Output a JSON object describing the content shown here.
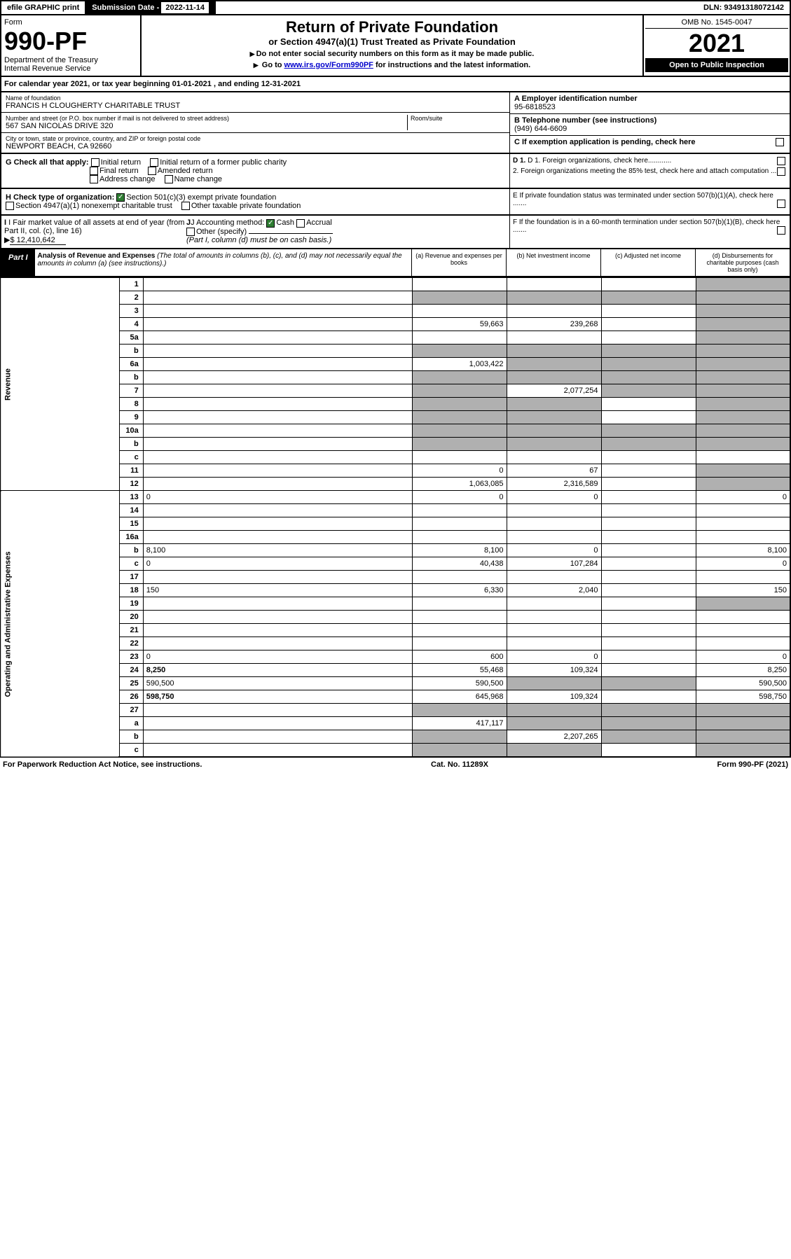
{
  "topbar": {
    "efile": "efile GRAPHIC print",
    "sub_label": "Submission Date - ",
    "sub_date": "2022-11-14",
    "dln_label": "DLN: ",
    "dln": "93491318072142"
  },
  "header": {
    "form_label": "Form",
    "form_no": "990-PF",
    "dept": "Department of the Treasury",
    "irs": "Internal Revenue Service",
    "title": "Return of Private Foundation",
    "subtitle": "or Section 4947(a)(1) Trust Treated as Private Foundation",
    "note1": "Do not enter social security numbers on this form as it may be made public.",
    "note2_pre": "Go to ",
    "note2_link": "www.irs.gov/Form990PF",
    "note2_post": " for instructions and the latest information.",
    "omb": "OMB No. 1545-0047",
    "year": "2021",
    "open": "Open to Public Inspection"
  },
  "calyear": "For calendar year 2021, or tax year beginning 01-01-2021                        , and ending 12-31-2021",
  "info": {
    "name_lbl": "Name of foundation",
    "name": "FRANCIS H CLOUGHERTY CHARITABLE TRUST",
    "addr_lbl": "Number and street (or P.O. box number if mail is not delivered to street address)",
    "addr": "567 SAN NICOLAS DRIVE 320",
    "room_lbl": "Room/suite",
    "city_lbl": "City or town, state or province, country, and ZIP or foreign postal code",
    "city": "NEWPORT BEACH, CA  92660",
    "ein_lbl": "A Employer identification number",
    "ein": "95-6818523",
    "tel_lbl": "B Telephone number (see instructions)",
    "tel": "(949) 644-6609",
    "c_lbl": "C If exemption application is pending, check here"
  },
  "checks": {
    "g_lbl": "G Check all that apply:",
    "initial": "Initial return",
    "initial_former": "Initial return of a former public charity",
    "final": "Final return",
    "amended": "Amended return",
    "addr_change": "Address change",
    "name_change": "Name change",
    "d1": "D 1. Foreign organizations, check here............",
    "d2": "2. Foreign organizations meeting the 85% test, check here and attach computation ...",
    "e": "E  If private foundation status was terminated under section 507(b)(1)(A), check here .......",
    "h_lbl": "H Check type of organization:",
    "h1": "Section 501(c)(3) exempt private foundation",
    "h2": "Section 4947(a)(1) nonexempt charitable trust",
    "h3": "Other taxable private foundation",
    "i_lbl": "I Fair market value of all assets at end of year (from Part II, col. (c), line 16)",
    "i_val": "$  12,410,642",
    "j_lbl": "J Accounting method:",
    "j_cash": "Cash",
    "j_accrual": "Accrual",
    "j_other": "Other (specify)",
    "j_note": "(Part I, column (d) must be on cash basis.)",
    "f": "F  If the foundation is in a 60-month termination under section 507(b)(1)(B), check here ......."
  },
  "part1": {
    "label": "Part I",
    "title": "Analysis of Revenue and Expenses",
    "desc": "(The total of amounts in columns (b), (c), and (d) may not necessarily equal the amounts in column (a) (see instructions).)",
    "col_a": "(a)   Revenue and expenses per books",
    "col_b": "(b)   Net investment income",
    "col_c": "(c)   Adjusted net income",
    "col_d": "(d)   Disbursements for charitable purposes (cash basis only)"
  },
  "side_rev": "Revenue",
  "side_exp": "Operating and Administrative Expenses",
  "rows": [
    {
      "n": "1",
      "d": "",
      "a": "",
      "b": "",
      "c": "",
      "shade_d": true
    },
    {
      "n": "2",
      "d": "",
      "a": "",
      "b": "",
      "c": "",
      "shade": true
    },
    {
      "n": "3",
      "d": "",
      "a": "",
      "b": "",
      "c": "",
      "shade_d": true
    },
    {
      "n": "4",
      "d": "",
      "a": "59,663",
      "b": "239,268",
      "c": "",
      "shade_d": true
    },
    {
      "n": "5a",
      "d": "",
      "a": "",
      "b": "",
      "c": "",
      "shade_d": true
    },
    {
      "n": "b",
      "d": "",
      "a": "",
      "b": "",
      "c": "",
      "shade": true
    },
    {
      "n": "6a",
      "d": "",
      "a": "1,003,422",
      "b": "",
      "c": "",
      "shade_bcd": true
    },
    {
      "n": "b",
      "d": "",
      "a": "",
      "b": "",
      "c": "",
      "shade": true
    },
    {
      "n": "7",
      "d": "",
      "a": "",
      "b": "2,077,254",
      "c": "",
      "shade_acd": true
    },
    {
      "n": "8",
      "d": "",
      "a": "",
      "b": "",
      "c": "",
      "shade_abd": true
    },
    {
      "n": "9",
      "d": "",
      "a": "",
      "b": "",
      "c": "",
      "shade_abd": true
    },
    {
      "n": "10a",
      "d": "",
      "a": "",
      "b": "",
      "c": "",
      "shade": true
    },
    {
      "n": "b",
      "d": "",
      "a": "",
      "b": "",
      "c": "",
      "shade": true
    },
    {
      "n": "c",
      "d": "",
      "a": "",
      "b": "",
      "c": "",
      "shade_bd": true
    },
    {
      "n": "11",
      "d": "",
      "a": "0",
      "b": "67",
      "c": "",
      "shade_d": true
    },
    {
      "n": "12",
      "d": "",
      "a": "1,063,085",
      "b": "2,316,589",
      "c": "",
      "bold": true,
      "shade_d": true
    },
    {
      "n": "13",
      "d": "0",
      "a": "0",
      "b": "0",
      "c": ""
    },
    {
      "n": "14",
      "d": "",
      "a": "",
      "b": "",
      "c": ""
    },
    {
      "n": "15",
      "d": "",
      "a": "",
      "b": "",
      "c": ""
    },
    {
      "n": "16a",
      "d": "",
      "a": "",
      "b": "",
      "c": ""
    },
    {
      "n": "b",
      "d": "8,100",
      "a": "8,100",
      "b": "0",
      "c": ""
    },
    {
      "n": "c",
      "d": "0",
      "a": "40,438",
      "b": "107,284",
      "c": ""
    },
    {
      "n": "17",
      "d": "",
      "a": "",
      "b": "",
      "c": ""
    },
    {
      "n": "18",
      "d": "150",
      "a": "6,330",
      "b": "2,040",
      "c": ""
    },
    {
      "n": "19",
      "d": "",
      "a": "",
      "b": "",
      "c": "",
      "shade_d": true
    },
    {
      "n": "20",
      "d": "",
      "a": "",
      "b": "",
      "c": ""
    },
    {
      "n": "21",
      "d": "",
      "a": "",
      "b": "",
      "c": ""
    },
    {
      "n": "22",
      "d": "",
      "a": "",
      "b": "",
      "c": ""
    },
    {
      "n": "23",
      "d": "0",
      "a": "600",
      "b": "0",
      "c": ""
    },
    {
      "n": "24",
      "d": "8,250",
      "a": "55,468",
      "b": "109,324",
      "c": "",
      "bold": true
    },
    {
      "n": "25",
      "d": "590,500",
      "a": "590,500",
      "b": "",
      "c": "",
      "shade_bc": true
    },
    {
      "n": "26",
      "d": "598,750",
      "a": "645,968",
      "b": "109,324",
      "c": "",
      "bold": true
    },
    {
      "n": "27",
      "d": "",
      "a": "",
      "b": "",
      "c": "",
      "shade": true
    },
    {
      "n": "a",
      "d": "",
      "a": "417,117",
      "b": "",
      "c": "",
      "bold": true,
      "shade_bcd": true
    },
    {
      "n": "b",
      "d": "",
      "a": "",
      "b": "2,207,265",
      "c": "",
      "bold": true,
      "shade_acd": true
    },
    {
      "n": "c",
      "d": "",
      "a": "",
      "b": "",
      "c": "",
      "bold": true,
      "shade_abd": true
    }
  ],
  "footer": {
    "left": "For Paperwork Reduction Act Notice, see instructions.",
    "mid": "Cat. No. 11289X",
    "right": "Form 990-PF (2021)"
  }
}
